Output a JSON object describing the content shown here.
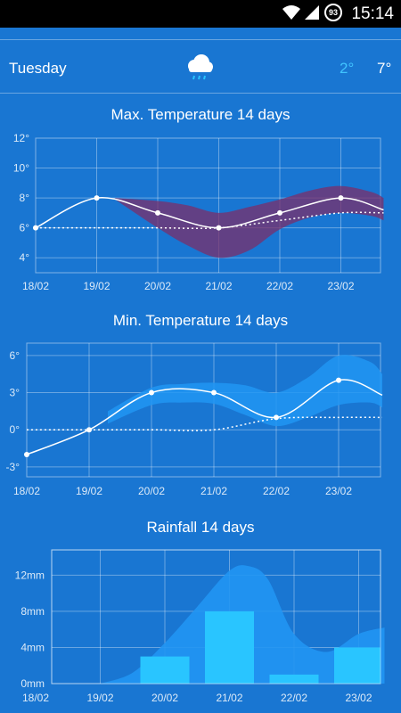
{
  "statusbar": {
    "time": "15:14",
    "battery": "93"
  },
  "header": {
    "day": "Tuesday",
    "icon": "rain-cloud-icon",
    "temp_min": "2°",
    "temp_max": "7°"
  },
  "colors": {
    "background": "#1976d2",
    "band_max": "#7b2f6a",
    "band_min": "#2196f3",
    "bar": "#29c5ff",
    "min_temp": "#40c4ff"
  },
  "chart_data": [
    {
      "type": "line",
      "title": "Max. Temperature 14 days",
      "categories": [
        "18/02",
        "19/02",
        "20/02",
        "21/02",
        "22/02",
        "23/02"
      ],
      "yticks": [
        "4°",
        "6°",
        "8°",
        "10°",
        "12°"
      ],
      "ylim": [
        3,
        12
      ],
      "series": [
        {
          "x": [
            18,
            19,
            20,
            21,
            22,
            23,
            23.7
          ],
          "values": [
            6,
            8,
            7,
            6,
            7,
            8,
            7.2
          ]
        },
        {
          "x": [
            18,
            19,
            20,
            21,
            22,
            23,
            23.7
          ],
          "values": [
            6,
            6,
            6,
            6,
            6.5,
            7,
            7
          ]
        }
      ],
      "band": {
        "x": [
          19.3,
          20,
          20.5,
          21,
          21.5,
          22,
          22.5,
          23,
          23.5,
          23.7
        ],
        "upper": [
          8,
          7.8,
          7.5,
          7,
          7.4,
          7.9,
          8.5,
          8.8,
          8.4,
          8.0
        ],
        "lower": [
          7.9,
          6,
          4.8,
          4.0,
          4.5,
          5.9,
          6.7,
          7,
          6.8,
          6.5
        ]
      }
    },
    {
      "type": "line",
      "title": "Min. Temperature 14 days",
      "categories": [
        "18/02",
        "19/02",
        "20/02",
        "21/02",
        "22/02",
        "23/02"
      ],
      "yticks": [
        "-3°",
        "0°",
        "3°",
        "6°"
      ],
      "ylim": [
        -3.8,
        7
      ],
      "series": [
        {
          "x": [
            18,
            19,
            20,
            21,
            22,
            23,
            23.7
          ],
          "values": [
            -2,
            0,
            3,
            3,
            1,
            4,
            2.8
          ]
        },
        {
          "x": [
            18,
            19,
            20,
            21,
            22,
            23,
            23.7
          ],
          "values": [
            0,
            0,
            0,
            0,
            0.9,
            1,
            1
          ]
        }
      ],
      "band": {
        "x": [
          19.3,
          20,
          20.5,
          21,
          21.5,
          22,
          22.5,
          23,
          23.5,
          23.7
        ],
        "upper": [
          1.5,
          3.4,
          3.7,
          3.8,
          3.6,
          3.0,
          4.2,
          6.0,
          5.5,
          4.5
        ],
        "lower": [
          0.5,
          2.0,
          2.2,
          2.1,
          1.2,
          0.3,
          1.0,
          2.0,
          2.2,
          1.8
        ]
      }
    },
    {
      "type": "bar",
      "title": "Rainfall 14 days",
      "categories": [
        "18/02",
        "19/02",
        "20/02",
        "21/02",
        "22/02",
        "23/02"
      ],
      "yticks": [
        "0mm",
        "4mm",
        "8mm",
        "12mm"
      ],
      "ylim": [
        0,
        14.8
      ],
      "values": [
        0,
        0,
        3,
        8,
        1,
        4
      ],
      "band": {
        "x": [
          19.0,
          19.5,
          20,
          20.5,
          21,
          21.3,
          21.6,
          22,
          22.5,
          23,
          23.4
        ],
        "upper": [
          0,
          1.2,
          4.5,
          8.5,
          12.5,
          13,
          11.5,
          5.5,
          3.5,
          5.5,
          6.2
        ]
      }
    }
  ]
}
